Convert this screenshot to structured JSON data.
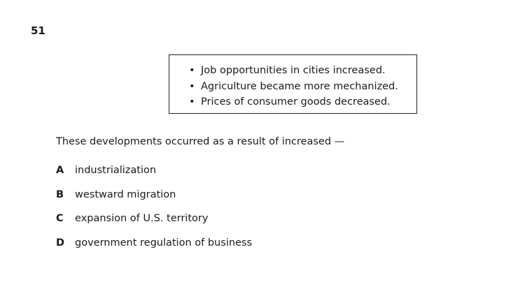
{
  "question": {
    "number": "51",
    "bullets": [
      "Job opportunities in cities increased.",
      "Agriculture became more mechanized.",
      "Prices of consumer goods decreased."
    ],
    "bullet_symbol": "•",
    "stem": "These developments occurred as a result of increased —",
    "choices": [
      {
        "letter": "A",
        "text": "industrialization"
      },
      {
        "letter": "B",
        "text": "westward migration"
      },
      {
        "letter": "C",
        "text": "expansion of U.S. territory"
      },
      {
        "letter": "D",
        "text": "government regulation of business"
      }
    ]
  }
}
